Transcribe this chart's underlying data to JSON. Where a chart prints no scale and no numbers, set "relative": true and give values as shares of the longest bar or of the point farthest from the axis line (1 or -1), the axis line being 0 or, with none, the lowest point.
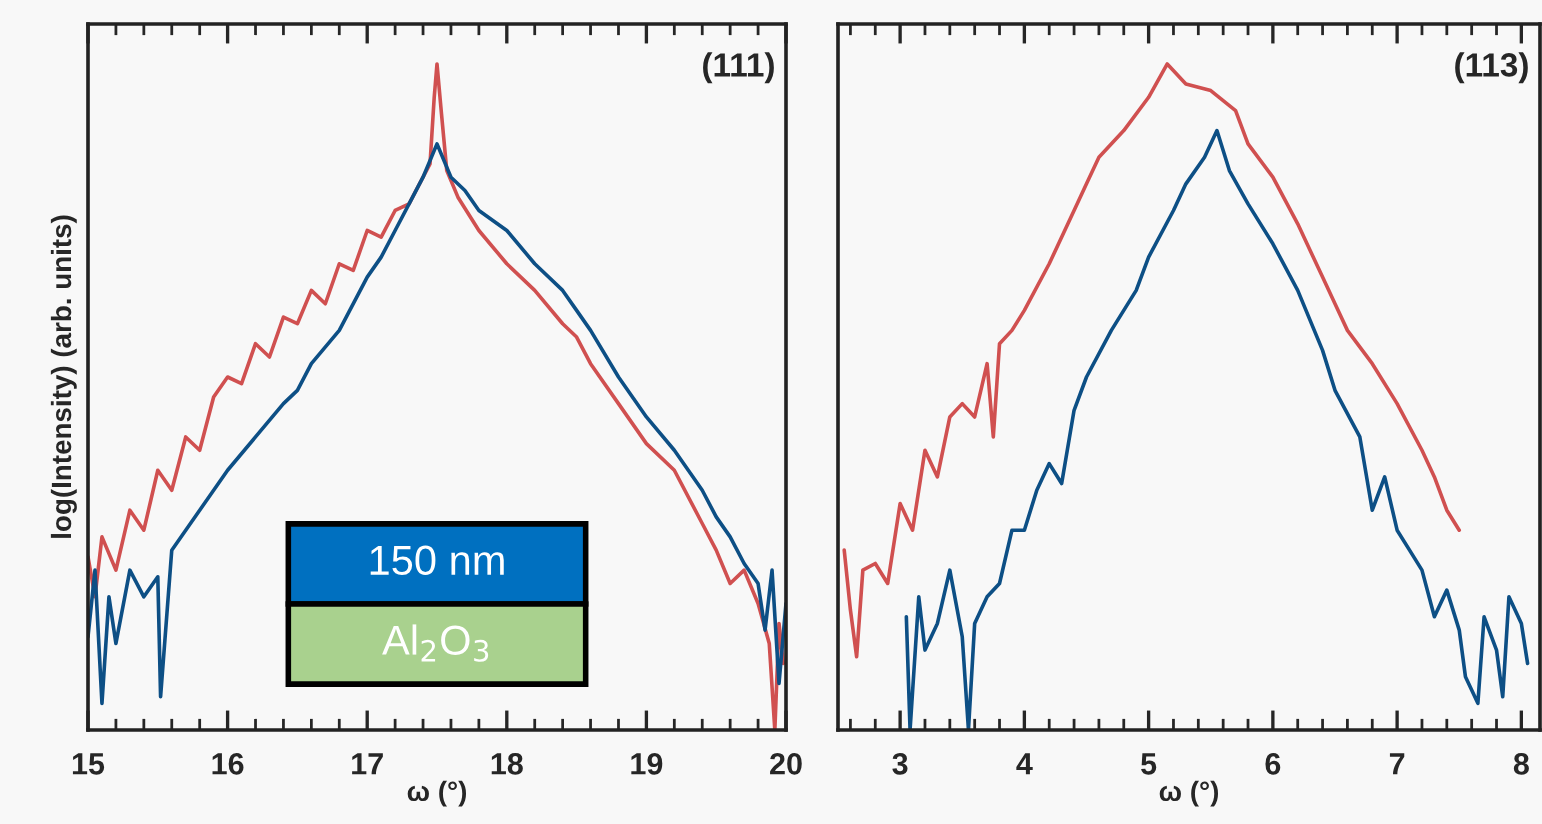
{
  "chart_data": [
    {
      "type": "line",
      "relative": true,
      "xlabel": "ω (°)",
      "ylabel": "log(Intensity) (arb. units)",
      "xlim": [
        15,
        20
      ],
      "xticks": [
        15,
        16,
        17,
        18,
        19,
        20
      ],
      "annotations": [
        "(111)",
        "150 nm",
        "Al$_{2}$O$_{3}$"
      ],
      "series": [
        {
          "color": "#d05050",
          "x": [
            15.0,
            15.05,
            15.1,
            15.2,
            15.3,
            15.4,
            15.5,
            15.6,
            15.7,
            15.8,
            15.9,
            16.0,
            16.1,
            16.2,
            16.3,
            16.4,
            16.5,
            16.6,
            16.7,
            16.8,
            16.9,
            17.0,
            17.1,
            17.2,
            17.3,
            17.4,
            17.45,
            17.48,
            17.5,
            17.53,
            17.57,
            17.65,
            17.8,
            18.0,
            18.2,
            18.4,
            18.5,
            18.6,
            18.8,
            19.0,
            19.2,
            19.4,
            19.5,
            19.6,
            19.7,
            19.8,
            19.88,
            19.92,
            19.95,
            19.98
          ],
          "values": [
            0.26,
            0.2,
            0.29,
            0.24,
            0.33,
            0.3,
            0.39,
            0.36,
            0.44,
            0.42,
            0.5,
            0.53,
            0.52,
            0.58,
            0.56,
            0.62,
            0.61,
            0.66,
            0.64,
            0.7,
            0.69,
            0.75,
            0.74,
            0.78,
            0.79,
            0.83,
            0.85,
            0.95,
            1.0,
            0.93,
            0.84,
            0.8,
            0.75,
            0.7,
            0.66,
            0.61,
            0.59,
            0.55,
            0.49,
            0.43,
            0.39,
            0.31,
            0.27,
            0.22,
            0.24,
            0.19,
            0.13,
            0.0,
            0.16,
            0.1
          ]
        },
        {
          "color": "#0d4f85",
          "x": [
            15.0,
            15.05,
            15.1,
            15.15,
            15.2,
            15.3,
            15.4,
            15.5,
            15.52,
            15.6,
            15.7,
            15.8,
            15.9,
            16.0,
            16.2,
            16.4,
            16.5,
            16.6,
            16.8,
            17.0,
            17.1,
            17.2,
            17.3,
            17.4,
            17.5,
            17.6,
            17.7,
            17.8,
            18.0,
            18.2,
            18.4,
            18.5,
            18.6,
            18.8,
            19.0,
            19.2,
            19.4,
            19.5,
            19.6,
            19.7,
            19.8,
            19.85,
            19.9,
            19.95,
            20.0
          ],
          "values": [
            0.14,
            0.24,
            0.04,
            0.2,
            0.13,
            0.24,
            0.2,
            0.23,
            0.05,
            0.27,
            0.3,
            0.33,
            0.36,
            0.39,
            0.44,
            0.49,
            0.51,
            0.55,
            0.6,
            0.68,
            0.71,
            0.75,
            0.79,
            0.83,
            0.88,
            0.83,
            0.81,
            0.78,
            0.75,
            0.7,
            0.66,
            0.63,
            0.6,
            0.53,
            0.47,
            0.42,
            0.36,
            0.32,
            0.29,
            0.25,
            0.22,
            0.15,
            0.24,
            0.07,
            0.19
          ]
        }
      ]
    },
    {
      "type": "line",
      "relative": true,
      "xlabel": "ω (°)",
      "xlim": [
        2.5,
        8.15
      ],
      "xticks": [
        3,
        4,
        5,
        6,
        7,
        8
      ],
      "annotations": [
        "(113)"
      ],
      "series": [
        {
          "color": "#d05050",
          "x": [
            2.55,
            2.6,
            2.65,
            2.7,
            2.8,
            2.9,
            3.0,
            3.1,
            3.2,
            3.3,
            3.4,
            3.5,
            3.6,
            3.7,
            3.75,
            3.8,
            3.9,
            4.0,
            4.2,
            4.4,
            4.5,
            4.6,
            4.8,
            5.0,
            5.15,
            5.3,
            5.5,
            5.7,
            5.8,
            6.0,
            6.2,
            6.4,
            6.5,
            6.6,
            6.8,
            7.0,
            7.2,
            7.3,
            7.4,
            7.5
          ],
          "values": [
            0.27,
            0.18,
            0.11,
            0.24,
            0.25,
            0.22,
            0.34,
            0.3,
            0.42,
            0.38,
            0.47,
            0.49,
            0.47,
            0.55,
            0.44,
            0.58,
            0.6,
            0.63,
            0.7,
            0.78,
            0.82,
            0.86,
            0.9,
            0.95,
            1.0,
            0.97,
            0.96,
            0.93,
            0.88,
            0.83,
            0.76,
            0.68,
            0.64,
            0.6,
            0.55,
            0.49,
            0.42,
            0.38,
            0.33,
            0.3
          ]
        },
        {
          "color": "#0d4f85",
          "x": [
            3.05,
            3.08,
            3.15,
            3.2,
            3.3,
            3.4,
            3.5,
            3.55,
            3.6,
            3.7,
            3.8,
            3.9,
            4.0,
            4.1,
            4.2,
            4.3,
            4.4,
            4.5,
            4.7,
            4.9,
            5.0,
            5.2,
            5.3,
            5.45,
            5.55,
            5.65,
            5.8,
            6.0,
            6.2,
            6.4,
            6.5,
            6.7,
            6.8,
            6.9,
            7.0,
            7.1,
            7.2,
            7.3,
            7.4,
            7.5,
            7.55,
            7.65,
            7.7,
            7.8,
            7.85,
            7.9,
            8.0,
            8.05
          ],
          "values": [
            0.17,
            0.0,
            0.2,
            0.12,
            0.16,
            0.24,
            0.14,
            0.0,
            0.16,
            0.2,
            0.22,
            0.3,
            0.3,
            0.36,
            0.4,
            0.37,
            0.48,
            0.53,
            0.6,
            0.66,
            0.71,
            0.78,
            0.82,
            0.86,
            0.9,
            0.84,
            0.79,
            0.73,
            0.66,
            0.57,
            0.51,
            0.44,
            0.33,
            0.38,
            0.3,
            0.27,
            0.24,
            0.17,
            0.21,
            0.15,
            0.08,
            0.04,
            0.17,
            0.12,
            0.05,
            0.2,
            0.16,
            0.1
          ]
        }
      ]
    }
  ]
}
